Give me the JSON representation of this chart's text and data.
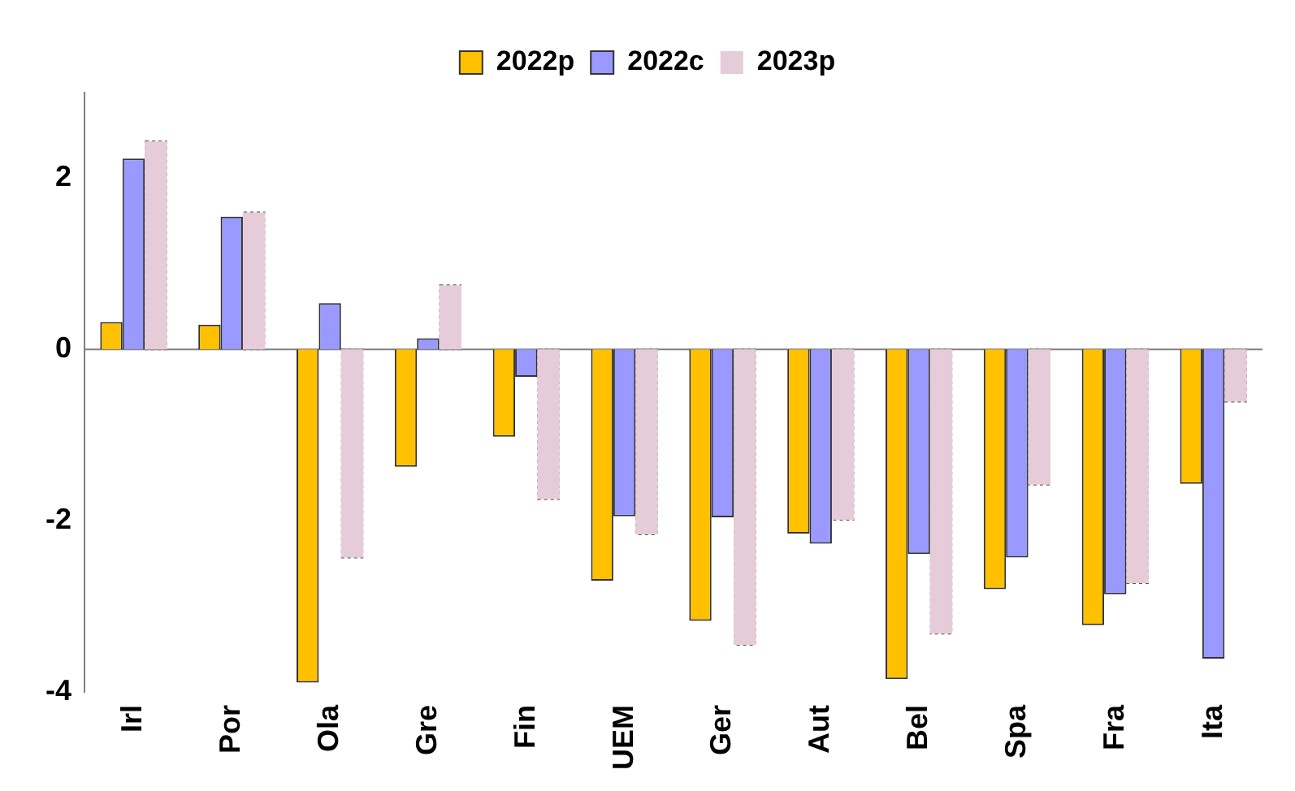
{
  "chart_data": {
    "type": "bar",
    "categories": [
      "Irl",
      "Por",
      "Ola",
      "Gre",
      "Fin",
      "UEM",
      "Ger",
      "Aut",
      "Bel",
      "Spa",
      "Fra",
      "Ita"
    ],
    "series": [
      {
        "name": "2022p",
        "color": "#ffc000",
        "values": [
          0.32,
          0.29,
          -3.89,
          -1.37,
          -1.02,
          -2.7,
          -3.17,
          -2.15,
          -3.85,
          -2.8,
          -3.22,
          -1.57
        ]
      },
      {
        "name": "2022c",
        "color": "#9999ff",
        "values": [
          2.23,
          1.55,
          0.54,
          0.13,
          -0.32,
          -1.95,
          -1.96,
          -2.27,
          -2.39,
          -2.43,
          -2.86,
          -3.61
        ]
      },
      {
        "name": "2023p",
        "color": "#e6ccd9",
        "line_style": "dotted",
        "values": [
          2.43,
          1.6,
          -2.43,
          0.75,
          -1.75,
          -2.16,
          -3.45,
          -1.99,
          -3.32,
          -1.58,
          -2.73,
          -0.61
        ]
      }
    ],
    "ylim": [
      -4,
      3
    ],
    "yticks": [
      -4,
      -2,
      0,
      2
    ],
    "grid": false,
    "legend": "top",
    "ref_lines": [
      {
        "axis": "y",
        "value": 0,
        "color": "#808080"
      }
    ]
  }
}
